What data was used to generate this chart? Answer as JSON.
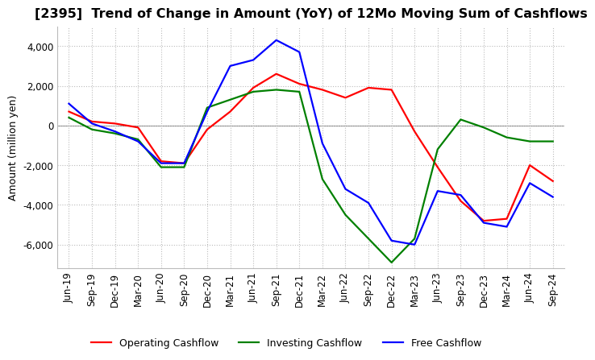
{
  "title": "[2395]  Trend of Change in Amount (YoY) of 12Mo Moving Sum of Cashflows",
  "ylabel": "Amount (million yen)",
  "ylim": [
    -7200,
    5000
  ],
  "yticks": [
    -6000,
    -4000,
    -2000,
    0,
    2000,
    4000
  ],
  "legend_labels": [
    "Operating Cashflow",
    "Investing Cashflow",
    "Free Cashflow"
  ],
  "legend_colors": [
    "#ff0000",
    "#008000",
    "#0000ff"
  ],
  "x_labels": [
    "Jun-19",
    "Sep-19",
    "Dec-19",
    "Mar-20",
    "Jun-20",
    "Sep-20",
    "Dec-20",
    "Mar-21",
    "Jun-21",
    "Sep-21",
    "Dec-21",
    "Mar-22",
    "Jun-22",
    "Sep-22",
    "Dec-22",
    "Mar-23",
    "Jun-23",
    "Sep-23",
    "Dec-23",
    "Mar-24",
    "Jun-24",
    "Sep-24"
  ],
  "operating": [
    700,
    200,
    100,
    -100,
    -1800,
    -1900,
    -200,
    700,
    1900,
    2600,
    2100,
    1800,
    1400,
    1900,
    1800,
    -300,
    -2100,
    -3800,
    -4800,
    -4700,
    -2000,
    -2800
  ],
  "investing": [
    400,
    -200,
    -400,
    -700,
    -2100,
    -2100,
    900,
    1300,
    1700,
    1800,
    1700,
    -2700,
    -4500,
    -5700,
    -6900,
    -5700,
    -1200,
    300,
    -100,
    -600,
    -800,
    -800
  ],
  "free": [
    1100,
    100,
    -300,
    -800,
    -1900,
    -1900,
    700,
    3000,
    3300,
    4300,
    3700,
    -900,
    -3200,
    -3900,
    -5800,
    -6000,
    -3300,
    -3500,
    -4900,
    -5100,
    -2900,
    -3600
  ],
  "line_width": 1.6,
  "grid_color": "#bbbbbb",
  "background_color": "#ffffff",
  "title_fontsize": 11.5,
  "label_fontsize": 9,
  "tick_fontsize": 8.5
}
